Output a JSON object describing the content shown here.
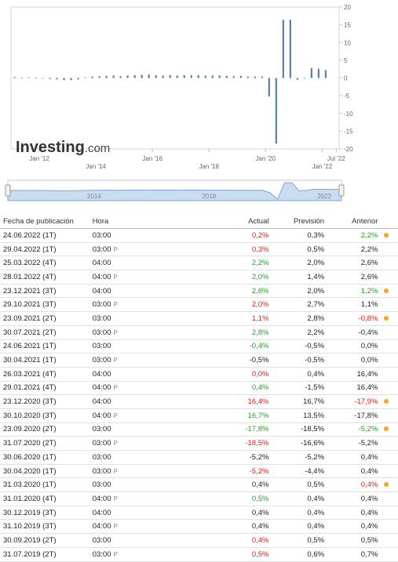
{
  "colors": {
    "bar": "#5b7fa8",
    "nav_fill": "#c9dcf0",
    "positive": "#2a9c2a",
    "negative": "#e0201b",
    "revision_dot": "#f5a623"
  },
  "logo": {
    "brand": "Investing",
    "suffix": ".com"
  },
  "navigator": {
    "labels": [
      "2014",
      "2018",
      "2022"
    ]
  },
  "chart_data": {
    "type": "bar",
    "ylim": [
      -20,
      20
    ],
    "y_ticks": [
      "20",
      "15",
      "10",
      "5",
      "0",
      "-5",
      "-10",
      "-15",
      "-20"
    ],
    "x_ticks_upper": [
      "Jan '12",
      "Jan '16",
      "Jan '20",
      "Jul '22"
    ],
    "x_ticks_lower": [
      "Jan '14",
      "Jan '18",
      "Jan '22"
    ],
    "x": [
      "2011-Q1",
      "2011-Q2",
      "2011-Q3",
      "2011-Q4",
      "2012-Q1",
      "2012-Q2",
      "2012-Q3",
      "2012-Q4",
      "2013-Q1",
      "2013-Q2",
      "2013-Q3",
      "2013-Q4",
      "2014-Q1",
      "2014-Q2",
      "2014-Q3",
      "2014-Q4",
      "2015-Q1",
      "2015-Q2",
      "2015-Q3",
      "2015-Q4",
      "2016-Q1",
      "2016-Q2",
      "2016-Q3",
      "2016-Q4",
      "2017-Q1",
      "2017-Q2",
      "2017-Q3",
      "2017-Q4",
      "2018-Q1",
      "2018-Q2",
      "2018-Q3",
      "2018-Q4",
      "2019-Q1",
      "2019-Q2",
      "2019-Q3",
      "2019-Q4",
      "2020-Q1",
      "2020-Q2",
      "2020-Q3",
      "2020-Q4",
      "2021-Q1",
      "2021-Q2",
      "2021-Q3",
      "2021-Q4",
      "2022-Q1"
    ],
    "values": [
      0.3,
      0.1,
      0.2,
      0.1,
      -0.1,
      -0.3,
      -0.4,
      -0.6,
      -0.6,
      -0.4,
      0.2,
      0.4,
      0.5,
      0.6,
      0.7,
      0.5,
      0.7,
      0.8,
      0.9,
      1.0,
      0.8,
      0.7,
      0.8,
      0.7,
      0.8,
      0.8,
      0.8,
      0.7,
      0.7,
      0.7,
      0.6,
      0.5,
      0.6,
      0.4,
      0.4,
      0.4,
      -5.2,
      -18.5,
      16.4,
      16.4,
      -0.5,
      0.0,
      2.8,
      2.6,
      2.2
    ]
  },
  "table": {
    "headers": {
      "date": "Fecha de publicación",
      "time": "Hora",
      "actual": "Actual",
      "forecast": "Previsión",
      "previous": "Anterior"
    },
    "rows": [
      {
        "date": "24.06.2022 (1T)",
        "time": "03:00",
        "prelim": "",
        "actual": "0,2%",
        "actual_color": "red",
        "forecast": "0,3%",
        "previous": "2,2%",
        "prev_color": "green",
        "dot": true
      },
      {
        "date": "29.04.2022 (1T)",
        "time": "03:00",
        "prelim": "P",
        "actual": "0,3%",
        "actual_color": "red",
        "forecast": "0,5%",
        "previous": "2,2%",
        "prev_color": "black",
        "dot": false
      },
      {
        "date": "25.03.2022 (4T)",
        "time": "04:00",
        "prelim": "",
        "actual": "2,2%",
        "actual_color": "green",
        "forecast": "2,0%",
        "previous": "2,6%",
        "prev_color": "black",
        "dot": false
      },
      {
        "date": "28.01.2022 (4T)",
        "time": "04:00",
        "prelim": "P",
        "actual": "2,0%",
        "actual_color": "green",
        "forecast": "1,4%",
        "previous": "2,6%",
        "prev_color": "black",
        "dot": false
      },
      {
        "date": "23.12.2021 (3T)",
        "time": "04:00",
        "prelim": "",
        "actual": "2,6%",
        "actual_color": "green",
        "forecast": "2,0%",
        "previous": "1,2%",
        "prev_color": "green",
        "dot": true
      },
      {
        "date": "29.10.2021 (3T)",
        "time": "03:00",
        "prelim": "P",
        "actual": "2,0%",
        "actual_color": "red",
        "forecast": "2,7%",
        "previous": "1,1%",
        "prev_color": "black",
        "dot": false
      },
      {
        "date": "23.09.2021 (2T)",
        "time": "03:00",
        "prelim": "",
        "actual": "1,1%",
        "actual_color": "red",
        "forecast": "2,8%",
        "previous": "-0,8%",
        "prev_color": "red",
        "dot": true
      },
      {
        "date": "30.07.2021 (2T)",
        "time": "03:00",
        "prelim": "P",
        "actual": "2,8%",
        "actual_color": "green",
        "forecast": "2,2%",
        "previous": "-0,4%",
        "prev_color": "black",
        "dot": false
      },
      {
        "date": "24.06.2021 (1T)",
        "time": "03:00",
        "prelim": "",
        "actual": "-0,4%",
        "actual_color": "green",
        "forecast": "-0,5%",
        "previous": "0,0%",
        "prev_color": "black",
        "dot": false
      },
      {
        "date": "30.04.2021 (1T)",
        "time": "03:00",
        "prelim": "P",
        "actual": "-0,5%",
        "actual_color": "black",
        "forecast": "-0,5%",
        "previous": "0,0%",
        "prev_color": "black",
        "dot": false
      },
      {
        "date": "26.03.2021 (4T)",
        "time": "04:00",
        "prelim": "",
        "actual": "0,0%",
        "actual_color": "red",
        "forecast": "0,4%",
        "previous": "16,4%",
        "prev_color": "black",
        "dot": false
      },
      {
        "date": "29.01.2021 (4T)",
        "time": "04:00",
        "prelim": "P",
        "actual": "0,4%",
        "actual_color": "green",
        "forecast": "-1,5%",
        "previous": "16,4%",
        "prev_color": "black",
        "dot": false
      },
      {
        "date": "23.12.2020 (3T)",
        "time": "04:00",
        "prelim": "",
        "actual": "16,4%",
        "actual_color": "red",
        "forecast": "16,7%",
        "previous": "-17,9%",
        "prev_color": "red",
        "dot": true
      },
      {
        "date": "30.10.2020 (3T)",
        "time": "04:00",
        "prelim": "P",
        "actual": "16,7%",
        "actual_color": "green",
        "forecast": "13,5%",
        "previous": "-17,8%",
        "prev_color": "black",
        "dot": false
      },
      {
        "date": "23.09.2020 (2T)",
        "time": "03:00",
        "prelim": "",
        "actual": "-17,8%",
        "actual_color": "green",
        "forecast": "-18,5%",
        "previous": "-5,2%",
        "prev_color": "green",
        "dot": true
      },
      {
        "date": "31.07.2020 (2T)",
        "time": "03:00",
        "prelim": "P",
        "actual": "-18,5%",
        "actual_color": "red",
        "forecast": "-16,6%",
        "previous": "-5,2%",
        "prev_color": "black",
        "dot": false
      },
      {
        "date": "30.06.2020 (1T)",
        "time": "03:00",
        "prelim": "",
        "actual": "-5,2%",
        "actual_color": "black",
        "forecast": "-5,2%",
        "previous": "0,4%",
        "prev_color": "black",
        "dot": false
      },
      {
        "date": "30.04.2020 (1T)",
        "time": "03:00",
        "prelim": "P",
        "actual": "-5,2%",
        "actual_color": "red",
        "forecast": "-4,4%",
        "previous": "0,4%",
        "prev_color": "black",
        "dot": false
      },
      {
        "date": "31.03.2020 (1T)",
        "time": "03:00",
        "prelim": "",
        "actual": "0,4%",
        "actual_color": "black",
        "forecast": "0,5%",
        "previous": "0,4%",
        "prev_color": "red",
        "dot": true
      },
      {
        "date": "31.01.2020 (4T)",
        "time": "04:00",
        "prelim": "P",
        "actual": "0,5%",
        "actual_color": "green",
        "forecast": "0,4%",
        "previous": "0,4%",
        "prev_color": "black",
        "dot": false
      },
      {
        "date": "30.12.2019 (3T)",
        "time": "04:00",
        "prelim": "",
        "actual": "0,4%",
        "actual_color": "black",
        "forecast": "0,4%",
        "previous": "0,4%",
        "prev_color": "black",
        "dot": false
      },
      {
        "date": "31.10.2019 (3T)",
        "time": "04:00",
        "prelim": "P",
        "actual": "0,4%",
        "actual_color": "black",
        "forecast": "0,4%",
        "previous": "0,4%",
        "prev_color": "black",
        "dot": false
      },
      {
        "date": "30.09.2019 (2T)",
        "time": "03:00",
        "prelim": "",
        "actual": "0,4%",
        "actual_color": "red",
        "forecast": "0,5%",
        "previous": "0,5%",
        "prev_color": "black",
        "dot": false
      },
      {
        "date": "31.07.2019 (2T)",
        "time": "03:00",
        "prelim": "P",
        "actual": "0,5%",
        "actual_color": "red",
        "forecast": "0,6%",
        "previous": "0,7%",
        "prev_color": "black",
        "dot": false
      }
    ]
  }
}
